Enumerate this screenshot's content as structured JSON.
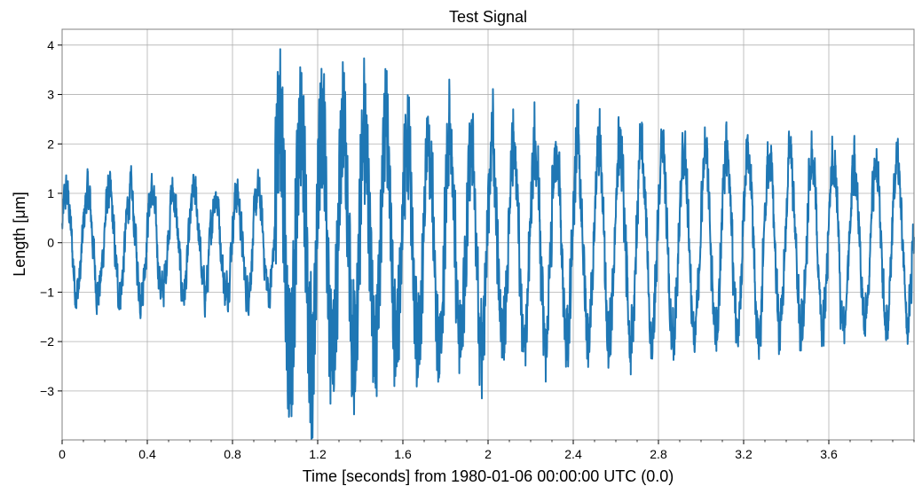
{
  "chart_data": {
    "type": "line",
    "title": "Test Signal",
    "xlabel": "Time [seconds] from 1980-01-06 00:00:00 UTC (0.0)",
    "ylabel": "Length [μm]",
    "xlim": [
      0,
      4
    ],
    "ylim": [
      -3.99,
      4.32
    ],
    "xticks": [
      0,
      0.4,
      0.8,
      1.2,
      1.6,
      2.0,
      2.4,
      2.8,
      3.2,
      3.6
    ],
    "xtick_labels": [
      "0",
      "0.4",
      "0.8",
      "1.2",
      "1.6",
      "2",
      "2.4",
      "2.8",
      "3.2",
      "3.6"
    ],
    "x_minor_step": 0.1,
    "yticks": [
      -3,
      -2,
      -1,
      0,
      1,
      2,
      3,
      4
    ],
    "ytick_labels": [
      "−3",
      "−2",
      "−1",
      "0",
      "1",
      "2",
      "3",
      "4"
    ],
    "grid": true,
    "legend": null,
    "series": [
      {
        "name": "Test Signal",
        "color": "#1f77b4",
        "description": "10 Hz sinusoid (amplitude ~1) with noise; burst of high-frequency oscillation begins at t=1.0 s and slowly decays",
        "baseline_frequency_hz": 10,
        "baseline_amplitude": 1.0,
        "noise_amplitude": 0.5,
        "burst_start_s": 1.0,
        "burst_peak_amplitude": 2.6,
        "burst_decay_time_s": 3.5,
        "envelope_samples": [
          {
            "t": 0.0,
            "max": 1.7,
            "min": -2.0
          },
          {
            "t": 0.4,
            "max": 1.4,
            "min": -1.6
          },
          {
            "t": 0.8,
            "max": 1.5,
            "min": -1.6
          },
          {
            "t": 1.0,
            "max": 3.3,
            "min": -2.5
          },
          {
            "t": 1.1,
            "max": 3.95,
            "min": -3.2
          },
          {
            "t": 1.2,
            "max": 3.1,
            "min": -3.6
          },
          {
            "t": 1.6,
            "max": 3.05,
            "min": -3.0
          },
          {
            "t": 2.0,
            "max": 2.55,
            "min": -2.6
          },
          {
            "t": 2.4,
            "max": 2.1,
            "min": -2.85
          },
          {
            "t": 2.8,
            "max": 2.2,
            "min": -2.25
          },
          {
            "t": 3.2,
            "max": 2.05,
            "min": -2.05
          },
          {
            "t": 3.6,
            "max": 2.3,
            "min": -1.95
          },
          {
            "t": 4.0,
            "max": 1.6,
            "min": -1.4
          }
        ]
      }
    ]
  },
  "colors": {
    "line": "#1f77b4",
    "grid": "#b0b0b0",
    "spine": "#808080",
    "background": "#ffffff"
  }
}
